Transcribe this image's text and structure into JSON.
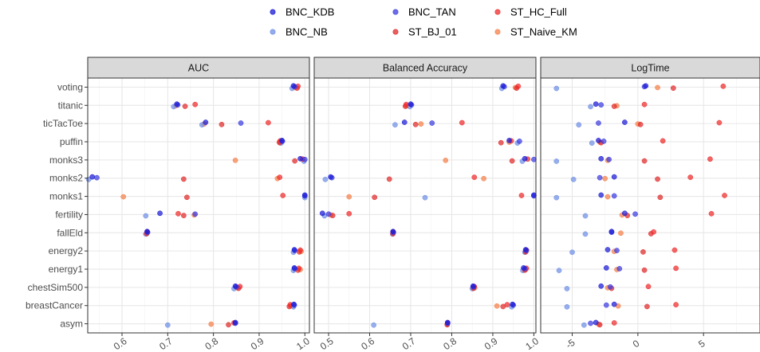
{
  "chart_data": {
    "type": "scatter",
    "title": "",
    "xlabel": "",
    "ylabel": "",
    "grid": true,
    "legend_position": "top",
    "categories": [
      "voting",
      "titanic",
      "ticTacToe",
      "puffin",
      "monks3",
      "monks2",
      "monks1",
      "fertility",
      "fallEld",
      "energy2",
      "energy1",
      "chestSim500",
      "breastCancer",
      "asym"
    ],
    "series": [
      {
        "name": "BNC_KDB",
        "color": "#1a1ad6"
      },
      {
        "name": "BNC_NB",
        "color": "#6f8fe6"
      },
      {
        "name": "BNC_TAN",
        "color": "#3c3ce0"
      },
      {
        "name": "ST_BJ_01",
        "color": "#e02a2a"
      },
      {
        "name": "ST_HC_Full",
        "color": "#ef2b2b"
      },
      {
        "name": "ST_Naive_KM",
        "color": "#f5804a"
      }
    ],
    "panels": [
      {
        "name": "AUC",
        "xlim": [
          0.525,
          1.01
        ],
        "ticks": [
          0.6,
          0.7,
          0.8,
          0.9,
          1.0
        ],
        "tick_labels": [
          "0.6",
          "0.7",
          "0.8",
          "0.9",
          "1.0"
        ],
        "values": {
          "voting": {
            "BNC_KDB": 0.975,
            "BNC_NB": 0.972,
            "BNC_TAN": 0.978,
            "ST_BJ_01": 0.983,
            "ST_HC_Full": 0.985,
            "ST_Naive_KM": 0.978
          },
          "titanic": {
            "BNC_KDB": 0.72,
            "BNC_NB": 0.713,
            "BNC_TAN": 0.722,
            "ST_BJ_01": 0.738,
            "ST_HC_Full": 0.76,
            "ST_Naive_KM": 0.718
          },
          "ticTacToe": {
            "BNC_KDB": 0.783,
            "BNC_NB": 0.775,
            "BNC_TAN": 0.86,
            "ST_BJ_01": 0.818,
            "ST_HC_Full": 0.92,
            "ST_Naive_KM": 0.78
          },
          "puffin": {
            "BNC_KDB": 0.95,
            "BNC_NB": 0.948,
            "BNC_TAN": 0.951,
            "ST_BJ_01": 0.945,
            "ST_HC_Full": 0.946,
            "ST_Naive_KM": 0.944
          },
          "monks3": {
            "BNC_KDB": 0.99,
            "BNC_NB": 0.998,
            "BNC_TAN": 1.0,
            "ST_BJ_01": 0.978,
            "ST_HC_Full": 0.995,
            "ST_Naive_KM": 0.848
          },
          "monks2": {
            "BNC_KDB": 0.535,
            "BNC_NB": 0.527,
            "BNC_TAN": 0.545,
            "ST_BJ_01": 0.735,
            "ST_HC_Full": 0.945,
            "ST_Naive_KM": 0.94
          },
          "monks1": {
            "BNC_KDB": 1.0,
            "BNC_NB": 1.0,
            "BNC_TAN": 1.0,
            "ST_BJ_01": 0.742,
            "ST_HC_Full": 0.952,
            "ST_Naive_KM": 0.603
          },
          "fertility": {
            "BNC_KDB": 0.683,
            "BNC_NB": 0.652,
            "BNC_TAN": 0.76,
            "ST_BJ_01": 0.735,
            "ST_HC_Full": 0.723,
            "ST_Naive_KM": 0.758
          },
          "fallEld": {
            "BNC_KDB": 0.655,
            "BNC_NB": 0.652,
            "BNC_TAN": 0.656,
            "ST_BJ_01": 0.654,
            "ST_HC_Full": 0.655,
            "ST_Naive_KM": 0.655
          },
          "energy2": {
            "BNC_KDB": 0.977,
            "BNC_NB": 0.975,
            "BNC_TAN": 0.978,
            "ST_BJ_01": 0.988,
            "ST_HC_Full": 0.99,
            "ST_Naive_KM": 0.992
          },
          "energy1": {
            "BNC_KDB": 0.977,
            "BNC_NB": 0.975,
            "BNC_TAN": 0.978,
            "ST_BJ_01": 0.985,
            "ST_HC_Full": 0.987,
            "ST_Naive_KM": 0.99
          },
          "chestSim500": {
            "BNC_KDB": 0.848,
            "BNC_NB": 0.845,
            "BNC_TAN": 0.85,
            "ST_BJ_01": 0.855,
            "ST_HC_Full": 0.858,
            "ST_Naive_KM": 0.852
          },
          "breastCancer": {
            "BNC_KDB": 0.976,
            "BNC_NB": 0.975,
            "BNC_TAN": 0.977,
            "ST_BJ_01": 0.966,
            "ST_HC_Full": 0.968,
            "ST_Naive_KM": 0.97
          },
          "asym": {
            "BNC_KDB": 0.848,
            "BNC_NB": 0.7,
            "BNC_TAN": 0.848,
            "ST_BJ_01": 0.833,
            "ST_HC_Full": 0.845,
            "ST_Naive_KM": 0.795
          }
        }
      },
      {
        "name": "Balanced Accuracy",
        "xlim": [
          0.465,
          1.005
        ],
        "ticks": [
          0.5,
          0.6,
          0.7,
          0.8,
          0.9,
          1.0
        ],
        "tick_labels": [
          "0.5",
          "0.6",
          "0.7",
          "0.8",
          "0.9",
          "1.0"
        ],
        "values": {
          "voting": {
            "BNC_KDB": 0.925,
            "BNC_NB": 0.922,
            "BNC_TAN": 0.928,
            "ST_BJ_01": 0.958,
            "ST_HC_Full": 0.962,
            "ST_Naive_KM": 0.955
          },
          "titanic": {
            "BNC_KDB": 0.7,
            "BNC_NB": 0.698,
            "BNC_TAN": 0.702,
            "ST_BJ_01": 0.687,
            "ST_HC_Full": 0.689,
            "ST_Naive_KM": 0.69
          },
          "ticTacToe": {
            "BNC_KDB": 0.685,
            "BNC_NB": 0.662,
            "BNC_TAN": 0.752,
            "ST_BJ_01": 0.712,
            "ST_HC_Full": 0.825,
            "ST_Naive_KM": 0.725
          },
          "puffin": {
            "BNC_KDB": 0.94,
            "BNC_NB": 0.96,
            "BNC_TAN": 0.965,
            "ST_BJ_01": 0.92,
            "ST_HC_Full": 0.945,
            "ST_Naive_KM": 0.94
          },
          "monks3": {
            "BNC_KDB": 0.978,
            "BNC_NB": 0.972,
            "BNC_TAN": 1.0,
            "ST_BJ_01": 0.947,
            "ST_HC_Full": 0.985,
            "ST_Naive_KM": 0.785
          },
          "monks2": {
            "BNC_KDB": 0.505,
            "BNC_NB": 0.492,
            "BNC_TAN": 0.508,
            "ST_BJ_01": 0.648,
            "ST_HC_Full": 0.855,
            "ST_Naive_KM": 0.878
          },
          "monks1": {
            "BNC_KDB": 1.0,
            "BNC_NB": 0.735,
            "BNC_TAN": 1.0,
            "ST_BJ_01": 0.612,
            "ST_HC_Full": 0.97,
            "ST_Naive_KM": 0.55
          },
          "fertility": {
            "BNC_KDB": 0.485,
            "BNC_NB": 0.49,
            "BNC_TAN": 0.5,
            "ST_BJ_01": 0.51,
            "ST_HC_Full": 0.55,
            "ST_Naive_KM": 0.505
          },
          "fallEld": {
            "BNC_KDB": 0.657,
            "BNC_NB": 0.656,
            "BNC_TAN": 0.658,
            "ST_BJ_01": 0.657,
            "ST_HC_Full": 0.657,
            "ST_Naive_KM": 0.657
          },
          "energy2": {
            "BNC_KDB": 0.98,
            "BNC_NB": 0.978,
            "BNC_TAN": 0.982,
            "ST_BJ_01": 0.98,
            "ST_HC_Full": 0.982,
            "ST_Naive_KM": 0.981
          },
          "energy1": {
            "BNC_KDB": 0.975,
            "BNC_NB": 0.973,
            "BNC_TAN": 0.978,
            "ST_BJ_01": 0.978,
            "ST_HC_Full": 0.982,
            "ST_Naive_KM": 0.98
          },
          "chestSim500": {
            "BNC_KDB": 0.852,
            "BNC_NB": 0.85,
            "BNC_TAN": 0.853,
            "ST_BJ_01": 0.853,
            "ST_HC_Full": 0.855,
            "ST_Naive_KM": 0.856
          },
          "breastCancer": {
            "BNC_KDB": 0.948,
            "BNC_NB": 0.946,
            "BNC_TAN": 0.95,
            "ST_BJ_01": 0.925,
            "ST_HC_Full": 0.935,
            "ST_Naive_KM": 0.91
          },
          "asym": {
            "BNC_KDB": 0.79,
            "BNC_NB": 0.61,
            "BNC_TAN": 0.79,
            "ST_BJ_01": 0.789,
            "ST_HC_Full": 0.79,
            "ST_Naive_KM": 0.789
          }
        }
      },
      {
        "name": "LogTime",
        "xlim": [
          -7.4,
          9.3
        ],
        "ticks": [
          -5,
          0,
          5
        ],
        "tick_labels": [
          "-5",
          "0",
          "5"
        ],
        "values": {
          "voting": {
            "BNC_KDB": 0.6,
            "BNC_NB": -6.2,
            "BNC_TAN": 0.5,
            "ST_BJ_01": 2.7,
            "ST_HC_Full": 6.5,
            "ST_Naive_KM": 1.5
          },
          "titanic": {
            "BNC_KDB": -3.2,
            "BNC_NB": -3.6,
            "BNC_TAN": -2.8,
            "ST_BJ_01": -1.8,
            "ST_HC_Full": 0.5,
            "ST_Naive_KM": -1.6
          },
          "ticTacToe": {
            "BNC_KDB": -1.0,
            "BNC_NB": -4.5,
            "BNC_TAN": -3.0,
            "ST_BJ_01": 0.2,
            "ST_HC_Full": 6.2,
            "ST_Naive_KM": 0.0
          },
          "puffin": {
            "BNC_KDB": -3.0,
            "BNC_NB": -3.5,
            "BNC_TAN": -2.6,
            "ST_BJ_01": -2.8,
            "ST_HC_Full": 1.9,
            "ST_Naive_KM": -2.9
          },
          "monks3": {
            "BNC_KDB": -2.8,
            "BNC_NB": -6.2,
            "BNC_TAN": -2.2,
            "ST_BJ_01": 0.5,
            "ST_HC_Full": 5.5,
            "ST_Naive_KM": -2.3
          },
          "monks2": {
            "BNC_KDB": -1.8,
            "BNC_NB": -4.9,
            "BNC_TAN": -2.9,
            "ST_BJ_01": 1.5,
            "ST_HC_Full": 4.0,
            "ST_Naive_KM": -2.5
          },
          "monks1": {
            "BNC_KDB": -2.8,
            "BNC_NB": -6.2,
            "BNC_TAN": -1.8,
            "ST_BJ_01": 1.7,
            "ST_HC_Full": 6.6,
            "ST_Naive_KM": -2.3
          },
          "fertility": {
            "BNC_KDB": -1.0,
            "BNC_NB": -4.0,
            "BNC_TAN": -0.2,
            "ST_BJ_01": -0.8,
            "ST_HC_Full": 5.6,
            "ST_Naive_KM": -1.2
          },
          "fallEld": {
            "BNC_KDB": -2.0,
            "BNC_NB": -4.0,
            "BNC_TAN": -2.0,
            "ST_BJ_01": 1.0,
            "ST_HC_Full": 1.2,
            "ST_Naive_KM": -1.3
          },
          "energy2": {
            "BNC_KDB": -2.3,
            "BNC_NB": -5.0,
            "BNC_TAN": -1.6,
            "ST_BJ_01": 0.4,
            "ST_HC_Full": 2.8,
            "ST_Naive_KM": -1.8
          },
          "energy1": {
            "BNC_KDB": -2.4,
            "BNC_NB": -6.0,
            "BNC_TAN": -1.4,
            "ST_BJ_01": 0.5,
            "ST_HC_Full": 2.9,
            "ST_Naive_KM": -1.6
          },
          "chestSim500": {
            "BNC_KDB": -2.8,
            "BNC_NB": -5.4,
            "BNC_TAN": -2.1,
            "ST_BJ_01": -2.0,
            "ST_HC_Full": 0.8,
            "ST_Naive_KM": -2.3
          },
          "breastCancer": {
            "BNC_KDB": -1.8,
            "BNC_NB": -5.4,
            "BNC_TAN": -2.4,
            "ST_BJ_01": 0.7,
            "ST_HC_Full": 2.9,
            "ST_Naive_KM": -1.5
          },
          "asym": {
            "BNC_KDB": -3.2,
            "BNC_NB": -4.1,
            "BNC_TAN": -3.6,
            "ST_BJ_01": -2.9,
            "ST_HC_Full": -1.8,
            "ST_Naive_KM": -3.0
          }
        }
      }
    ]
  }
}
